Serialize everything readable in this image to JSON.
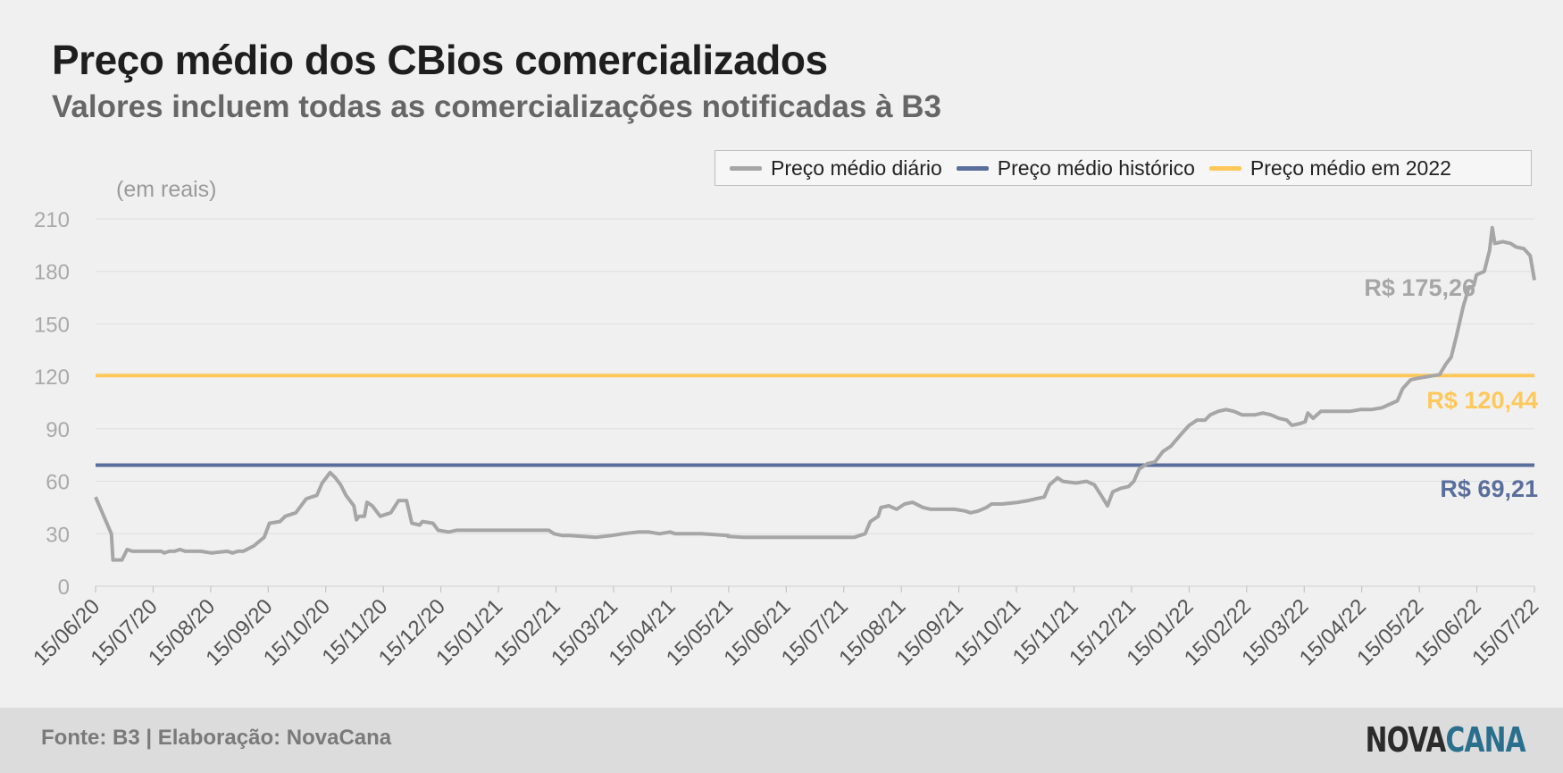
{
  "title": "Preço médio dos CBios comercializados",
  "subtitle": "Valores incluem todas as comercializações notificadas à B3",
  "unit_label": "(em reais)",
  "footer": {
    "source": "Fonte: B3 | Elaboração: NovaCana",
    "logo_part1": "NOVA",
    "logo_part2": "CANA"
  },
  "colors": {
    "daily": "#a6a6a6",
    "historic": "#5a6e9c",
    "year2022": "#ffc85a",
    "grid": "#dedede"
  },
  "chart_data": {
    "type": "line",
    "ylim": [
      0,
      210
    ],
    "yticks": [
      "0",
      "30",
      "60",
      "90",
      "120",
      "150",
      "180",
      "210"
    ],
    "x_categories": [
      "15/06/20",
      "15/07/20",
      "15/08/20",
      "15/09/20",
      "15/10/20",
      "15/11/20",
      "15/12/20",
      "15/01/21",
      "15/02/21",
      "15/03/21",
      "15/04/21",
      "15/05/21",
      "15/06/21",
      "15/07/21",
      "15/08/21",
      "15/09/21",
      "15/10/21",
      "15/11/21",
      "15/12/21",
      "15/01/22",
      "15/02/22",
      "15/03/22",
      "15/04/22",
      "15/05/22",
      "15/06/22",
      "15/07/22"
    ],
    "legend": [
      "Preço médio diário",
      "Preço médio histórico",
      "Preço médio em 2022"
    ],
    "series": [
      {
        "name": "Preço médio diário",
        "points": [
          [
            0,
            51
          ],
          [
            0.3,
            30
          ],
          [
            0.33,
            15
          ],
          [
            0.5,
            15
          ],
          [
            0.6,
            21
          ],
          [
            0.7,
            20
          ],
          [
            1,
            20
          ],
          [
            1.25,
            20
          ],
          [
            1.3,
            19
          ],
          [
            1.4,
            20
          ],
          [
            1.5,
            20
          ],
          [
            1.6,
            21
          ],
          [
            1.7,
            20
          ],
          [
            2,
            20
          ],
          [
            2.2,
            19
          ],
          [
            2.5,
            20
          ],
          [
            2.6,
            19
          ],
          [
            2.7,
            20
          ],
          [
            2.8,
            20
          ],
          [
            3,
            23
          ],
          [
            3.2,
            28
          ],
          [
            3.3,
            36
          ],
          [
            3.5,
            37
          ],
          [
            3.6,
            40
          ],
          [
            3.8,
            42
          ],
          [
            4,
            50
          ],
          [
            4.2,
            52
          ],
          [
            4.3,
            59
          ],
          [
            4.45,
            65
          ],
          [
            4.55,
            62
          ],
          [
            4.65,
            58
          ],
          [
            4.75,
            52
          ],
          [
            4.9,
            46
          ],
          [
            4.95,
            38
          ],
          [
            5,
            40
          ],
          [
            5.1,
            40
          ],
          [
            5.15,
            48
          ],
          [
            5.25,
            46
          ],
          [
            5.4,
            40
          ],
          [
            5.6,
            42
          ],
          [
            5.75,
            49
          ],
          [
            5.9,
            49
          ],
          [
            6,
            36
          ],
          [
            6.15,
            35
          ],
          [
            6.2,
            37
          ],
          [
            6.4,
            36
          ],
          [
            6.5,
            32
          ],
          [
            6.7,
            31
          ],
          [
            6.85,
            32
          ],
          [
            7,
            32
          ],
          [
            8,
            32
          ],
          [
            8.6,
            32
          ],
          [
            8.7,
            30
          ],
          [
            8.85,
            29
          ],
          [
            9,
            29
          ],
          [
            9.5,
            28
          ],
          [
            9.8,
            29
          ],
          [
            10,
            30
          ],
          [
            10.3,
            31
          ],
          [
            10.5,
            31
          ],
          [
            10.7,
            30
          ],
          [
            10.9,
            31
          ],
          [
            11,
            30
          ],
          [
            11.5,
            30
          ],
          [
            12,
            29
          ],
          [
            12,
            28.5
          ],
          [
            12.3,
            28
          ],
          [
            12.5,
            28
          ],
          [
            13,
            28
          ],
          [
            13.5,
            28
          ],
          [
            14,
            28
          ],
          [
            14.4,
            28
          ],
          [
            14.5,
            29
          ],
          [
            14.6,
            30
          ],
          [
            14.7,
            37
          ],
          [
            14.85,
            40
          ],
          [
            14.9,
            45
          ],
          [
            15.05,
            46
          ],
          [
            15.2,
            44
          ],
          [
            15.35,
            47
          ],
          [
            15.5,
            48
          ],
          [
            15.7,
            45
          ],
          [
            15.85,
            44
          ],
          [
            16.3,
            44
          ],
          [
            16.5,
            43
          ],
          [
            16.6,
            42
          ],
          [
            16.75,
            43
          ],
          [
            16.9,
            45
          ],
          [
            17,
            47
          ],
          [
            17.2,
            47
          ],
          [
            17.5,
            48
          ],
          [
            17.7,
            49
          ],
          [
            17.85,
            50
          ],
          [
            18,
            51
          ],
          [
            18.1,
            58
          ],
          [
            18.25,
            62
          ],
          [
            18.35,
            60
          ],
          [
            18.6,
            59
          ],
          [
            18.8,
            60
          ],
          [
            18.95,
            58
          ],
          [
            19.1,
            51
          ],
          [
            19.2,
            46
          ],
          [
            19.3,
            54
          ],
          [
            19.45,
            56
          ],
          [
            19.6,
            57
          ],
          [
            19.7,
            60
          ],
          [
            19.8,
            67
          ],
          [
            19.95,
            70
          ],
          [
            20.1,
            71
          ],
          [
            20.25,
            77
          ],
          [
            20.4,
            80
          ],
          [
            20.6,
            87
          ],
          [
            20.75,
            92
          ],
          [
            20.9,
            95
          ],
          [
            21.05,
            95
          ],
          [
            21.15,
            98
          ],
          [
            21.3,
            100
          ],
          [
            21.45,
            101
          ],
          [
            21.6,
            100
          ],
          [
            21.75,
            98
          ],
          [
            22,
            98
          ],
          [
            22.15,
            99
          ],
          [
            22.3,
            98
          ],
          [
            22.45,
            96
          ],
          [
            22.6,
            95
          ],
          [
            22.7,
            92
          ],
          [
            22.85,
            93
          ],
          [
            22.95,
            94
          ],
          [
            23,
            99
          ],
          [
            23.1,
            96
          ],
          [
            23.25,
            100
          ],
          [
            23.5,
            100
          ],
          [
            23.8,
            100
          ],
          [
            24.0,
            101
          ],
          [
            24.2,
            101
          ],
          [
            24.4,
            102
          ],
          [
            24.55,
            104
          ],
          [
            24.7,
            106
          ],
          [
            24.8,
            113
          ],
          [
            24.95,
            118
          ],
          [
            25.1,
            119
          ],
          [
            25.3,
            120
          ],
          [
            25.5,
            121
          ],
          [
            25.62,
            127
          ],
          [
            25.72,
            131
          ],
          [
            25.82,
            143
          ],
          [
            25.95,
            160
          ],
          [
            26.05,
            170
          ],
          [
            26.15,
            172
          ],
          [
            26.2,
            178
          ],
          [
            26.35,
            180
          ],
          [
            26.45,
            192
          ],
          [
            26.5,
            205
          ],
          [
            26.55,
            196
          ],
          [
            26.7,
            197
          ],
          [
            26.85,
            196
          ],
          [
            26.95,
            194
          ],
          [
            27.1,
            193
          ],
          [
            27.22,
            189
          ],
          [
            27.3,
            175
          ]
        ]
      },
      {
        "name": "Preço médio histórico",
        "value": 69.21,
        "label": "R$ 69,21"
      },
      {
        "name": "Preço médio em 2022",
        "value": 120.44,
        "label": "R$ 120,44"
      }
    ],
    "last_value_label": "R$ 175,26"
  }
}
